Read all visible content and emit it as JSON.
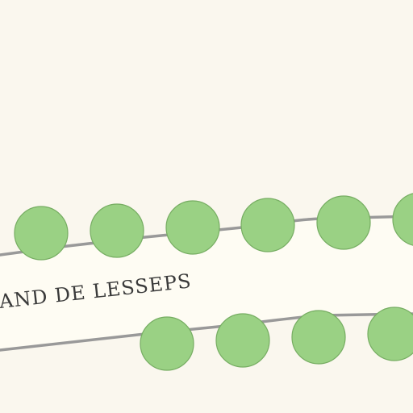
{
  "map": {
    "background_color": "#faf7ee",
    "road_fill_color": "#fefcf3",
    "road_edge_color": "#999999",
    "tree_fill_color": "#9ad184",
    "tree_stroke_color": "#76ad62",
    "label_color": "#3a3a3a",
    "street_label": "AND DE LESSEPS",
    "trees_north_side_count": 6,
    "trees_south_side_count": 4
  }
}
